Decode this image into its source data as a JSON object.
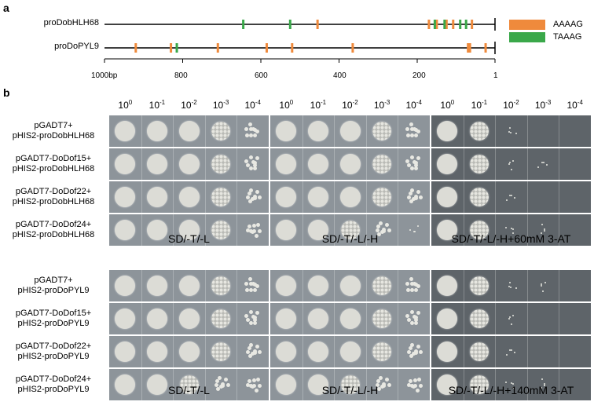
{
  "panel_a": {
    "label": "a",
    "promoters": [
      {
        "name": "proDobHLH68",
        "aaaag": [
          455,
          170,
          150,
          125,
          108,
          60
        ],
        "taaag": [
          645,
          525,
          155,
          130,
          90,
          75
        ]
      },
      {
        "name": "proDoPYL9",
        "aaaag": [
          920,
          830,
          710,
          585,
          520,
          365,
          70,
          65,
          25
        ],
        "taaag": [
          815
        ]
      }
    ],
    "legend": [
      {
        "label": "AAAAG",
        "color": "#ef8a3c"
      },
      {
        "label": "TAAAG",
        "color": "#3aa84a"
      }
    ],
    "axis": {
      "ticks": [
        "1000bp",
        "800",
        "600",
        "400",
        "200",
        "1"
      ]
    }
  },
  "panel_b": {
    "label": "b",
    "dilutions": [
      {
        "base": "10",
        "exp": "0"
      },
      {
        "base": "10",
        "exp": "-1"
      },
      {
        "base": "10",
        "exp": "-2"
      },
      {
        "base": "10",
        "exp": "-3"
      },
      {
        "base": "10",
        "exp": "-4"
      }
    ],
    "groups": [
      {
        "rows": [
          {
            "line1": "pGADT7+",
            "line2": "pHIS2-proDobHLH68"
          },
          {
            "line1": "pGADT7-DoDof15+",
            "line2": "pHIS2-proDobHLH68"
          },
          {
            "line1": "pGADT7-DoDof22+",
            "line2": "pHIS2-proDobHLH68"
          },
          {
            "line1": "pGADT7-DoDof24+",
            "line2": "pHIS2-proDobHLH68"
          }
        ],
        "media": [
          "SD/-T/-L",
          "SD/-T/-L/-H",
          "SD/-T/-L/-H+60mM 3-AT"
        ]
      },
      {
        "rows": [
          {
            "line1": "pGADT7+",
            "line2": "pHIS2-proDoPYL9"
          },
          {
            "line1": "pGADT7-DoDof15+",
            "line2": "pHIS2-proDoPYL9"
          },
          {
            "line1": "pGADT7-DoDof22+",
            "line2": "pHIS2-proDoPYL9"
          },
          {
            "line1": "pGADT7-DoDof24+",
            "line2": "pHIS2-proDoPYL9"
          }
        ],
        "media": [
          "SD/-T/-L",
          "SD/-T/-L/-H",
          "SD/-T/-L/-H+140mM 3-AT"
        ]
      }
    ]
  }
}
